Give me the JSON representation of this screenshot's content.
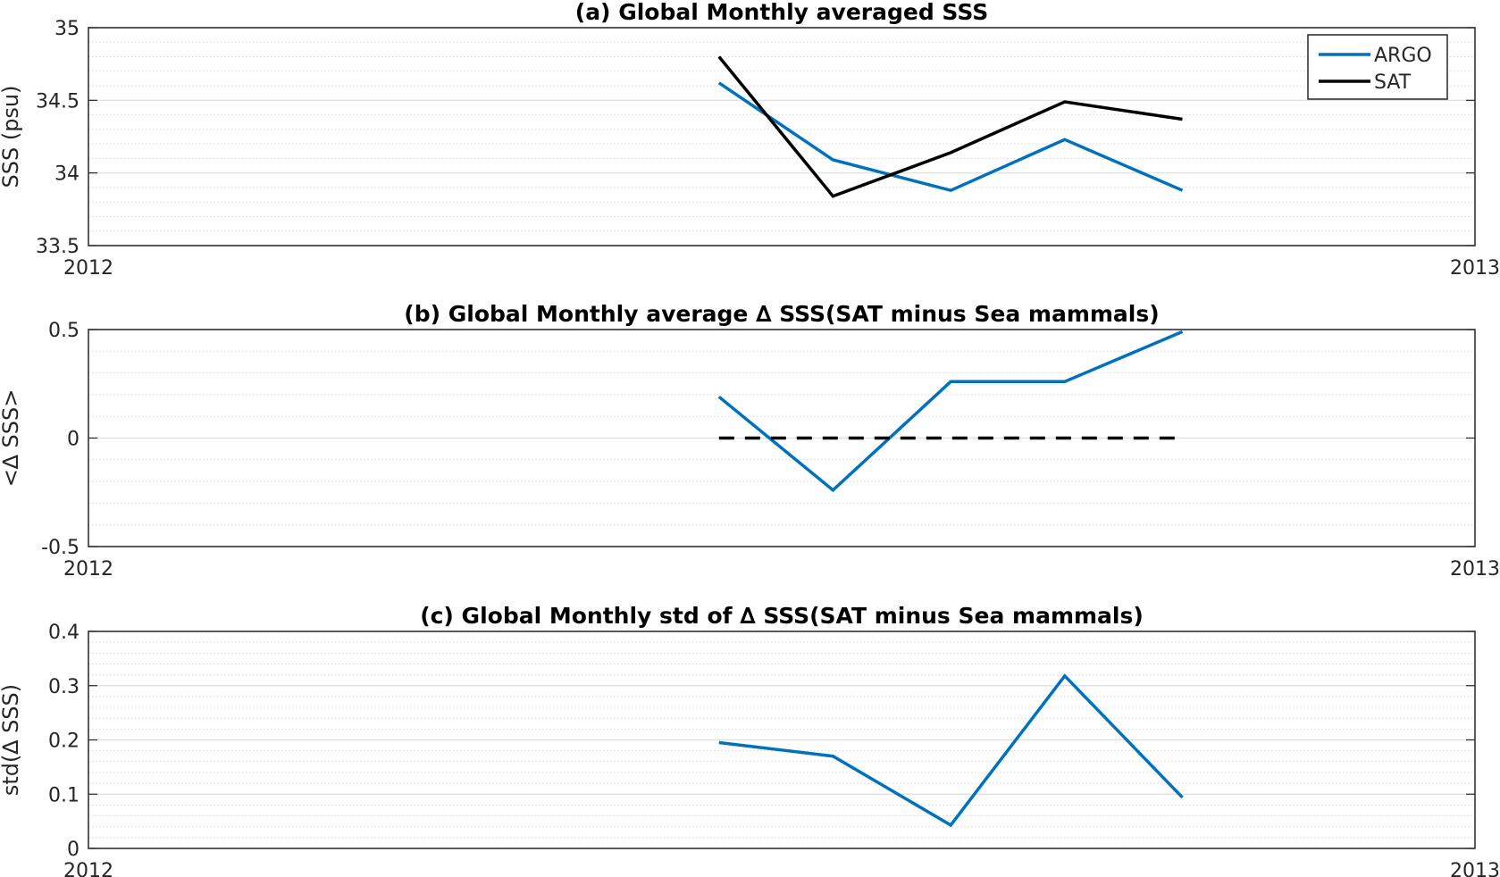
{
  "chart_data": [
    {
      "type": "line",
      "title": "(a) Global Monthly averaged SSS",
      "xlabel": "",
      "ylabel": "SSS (psu)",
      "xlim": [
        2012,
        2013
      ],
      "x_tick_labels": [
        "2012",
        "2013"
      ],
      "ylim": [
        33.5,
        35
      ],
      "y_ticks": [
        33.5,
        34,
        34.5,
        35
      ],
      "y_tick_labels": [
        "33.5",
        "34",
        "34.5",
        "35"
      ],
      "grid": true,
      "minor_grid": true,
      "legend": "top-right",
      "x": [
        2012.4548,
        2012.537,
        2012.6219,
        2012.7041,
        2012.789
      ],
      "series": [
        {
          "name": "ARGO",
          "color": "#0072BD",
          "values": [
            34.62,
            34.09,
            33.88,
            34.23,
            33.88
          ]
        },
        {
          "name": "SAT",
          "color": "#000000",
          "values": [
            34.8,
            33.84,
            34.14,
            34.49,
            34.37
          ]
        }
      ]
    },
    {
      "type": "line",
      "title": "(b) Global Monthly average ∆ SSS(SAT minus Sea mammals)",
      "xlabel": "",
      "ylabel": "<∆ SSS>",
      "xlim": [
        2012,
        2013
      ],
      "x_tick_labels": [
        "2012",
        "2013"
      ],
      "ylim": [
        -0.5,
        0.5
      ],
      "y_ticks": [
        -0.5,
        0,
        0.5
      ],
      "y_tick_labels": [
        "-0.5",
        "0",
        "0.5"
      ],
      "grid": true,
      "minor_grid": true,
      "x": [
        2012.4548,
        2012.537,
        2012.6219,
        2012.7041,
        2012.789
      ],
      "series": [
        {
          "color": "#0072BD",
          "style": "solid",
          "values": [
            0.19,
            -0.24,
            0.26,
            0.26,
            0.49
          ]
        },
        {
          "color": "#000000",
          "style": "dashed",
          "values": [
            0,
            0,
            0,
            0,
            0
          ]
        }
      ]
    },
    {
      "type": "line",
      "title": "(c) Global Monthly std of ∆ SSS(SAT minus Sea mammals)",
      "xlabel": "",
      "ylabel": "std(∆ SSS)",
      "xlim": [
        2012,
        2013
      ],
      "x_tick_labels": [
        "2012",
        "2013"
      ],
      "ylim": [
        0,
        0.4
      ],
      "y_ticks": [
        0,
        0.1,
        0.2,
        0.3,
        0.4
      ],
      "y_tick_labels": [
        "0",
        "0.1",
        "0.2",
        "0.3",
        "0.4"
      ],
      "grid": true,
      "minor_grid": true,
      "x": [
        2012.4548,
        2012.537,
        2012.6219,
        2012.7041,
        2012.789
      ],
      "series": [
        {
          "color": "#0072BD",
          "style": "solid",
          "values": [
            0.195,
            0.17,
            0.043,
            0.318,
            0.094
          ]
        }
      ]
    }
  ]
}
